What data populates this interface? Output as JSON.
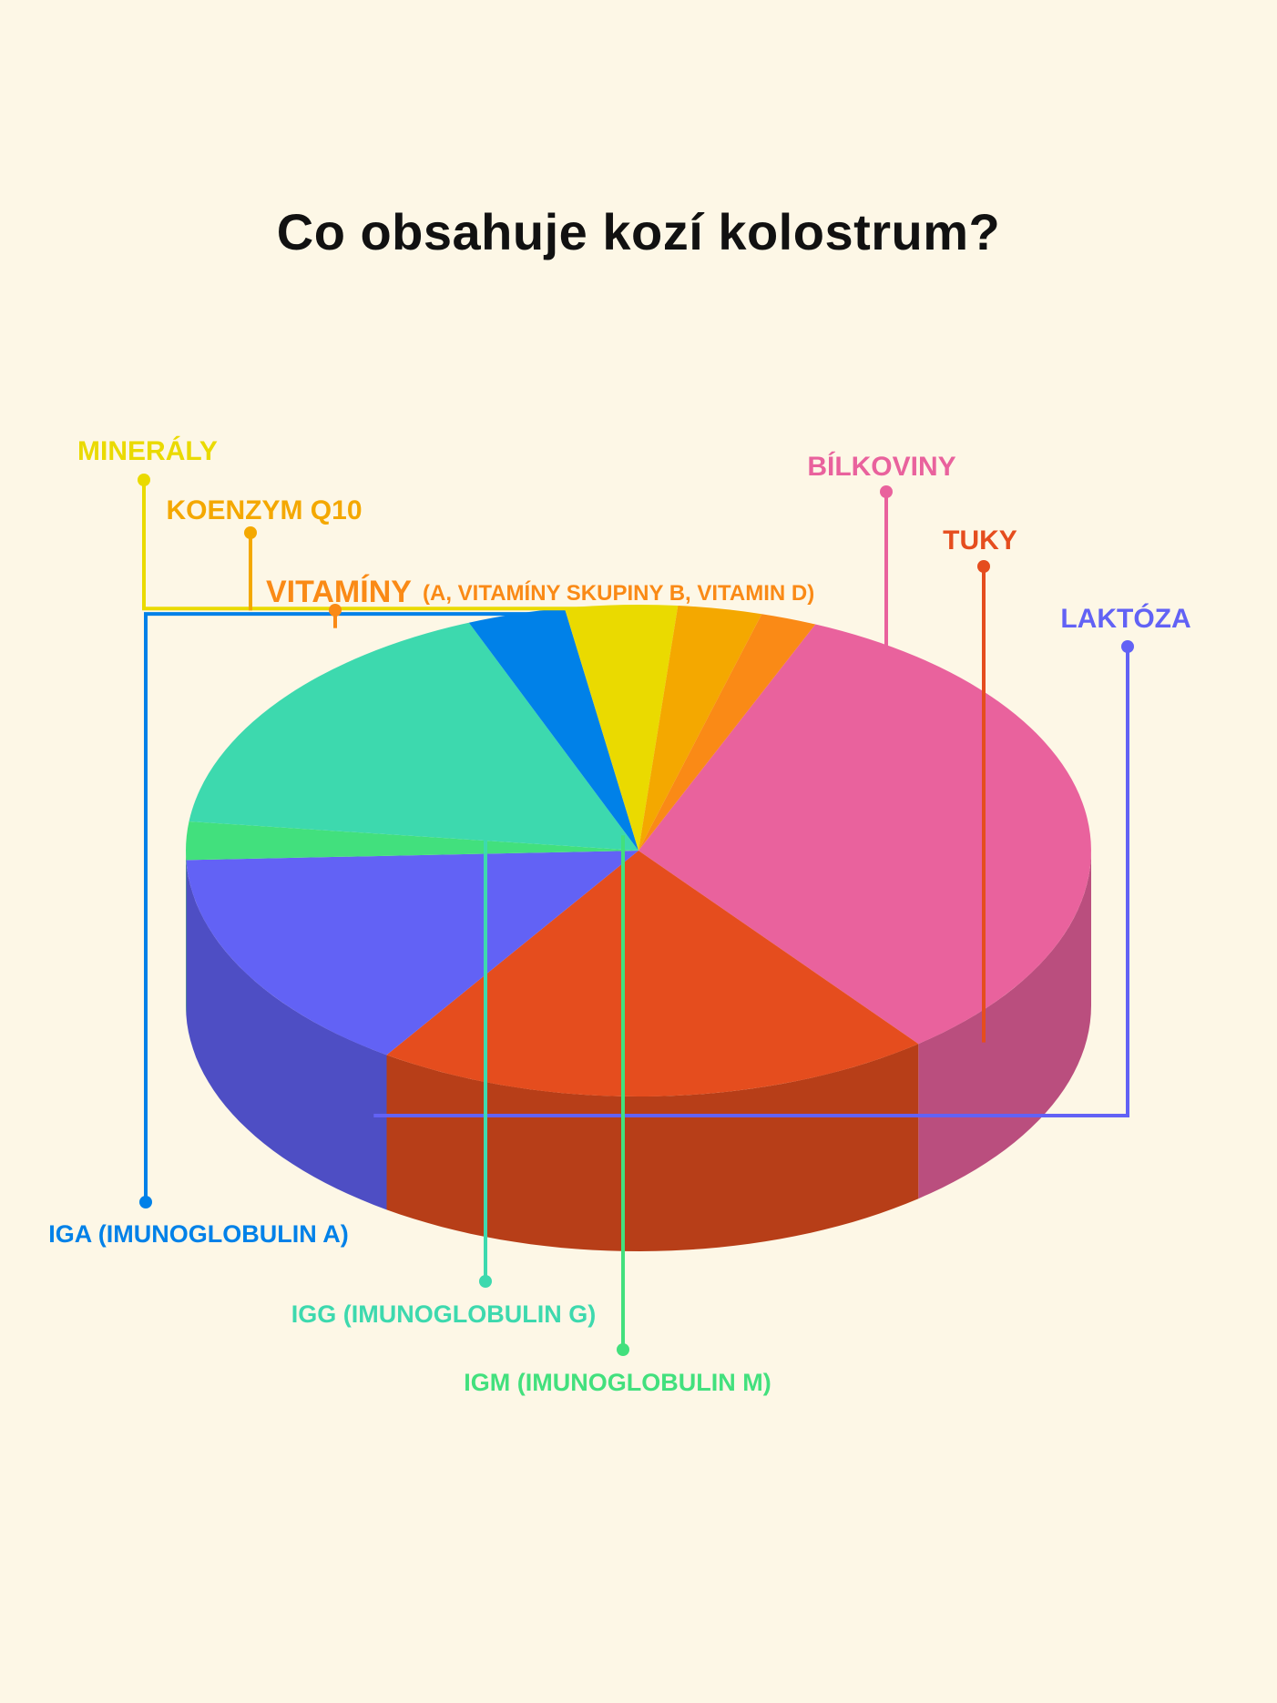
{
  "title": "Co obsahuje kozí kolostrum?",
  "chart_data": {
    "type": "pie",
    "style": "3d",
    "title": "Co obsahuje kozí kolostrum?",
    "slices": [
      {
        "label": "BÍLKOVINY",
        "value": 33,
        "color": "#e9629d"
      },
      {
        "label": "TUKY",
        "value": 20,
        "color": "#e54d1e"
      },
      {
        "label": "LAKTÓZA",
        "value": 15,
        "color": "#6262f5"
      },
      {
        "label": "IGM (IMUNOGLOBULIN M)",
        "value": 2.5,
        "color": "#42e07d"
      },
      {
        "label": "IGG (IMUNOGLOBULIN G)",
        "value": 17,
        "color": "#3dd9ae"
      },
      {
        "label": "IGA (IMUNOGLOBULIN A)",
        "value": 3.5,
        "color": "#0081e8"
      },
      {
        "label": "MINERÁLY",
        "value": 4,
        "color": "#eada00"
      },
      {
        "label": "KOENZYM Q10",
        "value": 3,
        "color": "#f4a800"
      },
      {
        "label": "VITAMÍNY",
        "value": 2,
        "sublabel": "(A, VITAMÍNY SKUPINY B, VITAMIN D)",
        "color": "#fa8a16"
      }
    ],
    "legend": "callout labels"
  }
}
